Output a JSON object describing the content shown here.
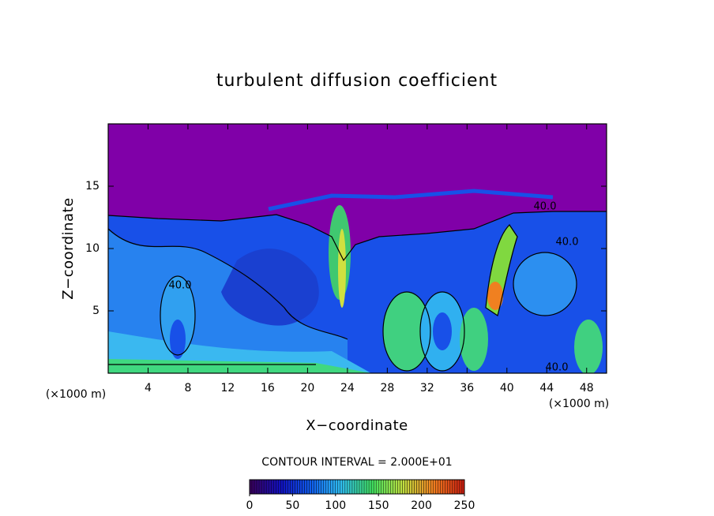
{
  "chart_data": {
    "type": "contour",
    "title": "turbulent diffusion coefficient",
    "x_label": "X−coordinate",
    "y_label": "Z−coordinate",
    "x_unit": "(×1000 m)",
    "y_unit": "(×1000 m)",
    "xlim": [
      0,
      50
    ],
    "ylim": [
      0,
      20
    ],
    "xticks": [
      4,
      8,
      12,
      16,
      20,
      24,
      28,
      32,
      36,
      40,
      44,
      48
    ],
    "yticks": [
      5,
      10,
      15
    ],
    "contour_interval_label": "CONTOUR INTERVAL = 2.000E+01",
    "contour_labels": [
      "40.0",
      "40.0",
      "40.0",
      "40.0"
    ],
    "colorbar": {
      "lim": [
        0,
        250
      ],
      "ticks": [
        0,
        50,
        100,
        150,
        200,
        250
      ],
      "colors": [
        "#3a0060",
        "#1010c0",
        "#1060f0",
        "#30c0f0",
        "#40e060",
        "#c0e040",
        "#f08020",
        "#d02010"
      ]
    }
  }
}
